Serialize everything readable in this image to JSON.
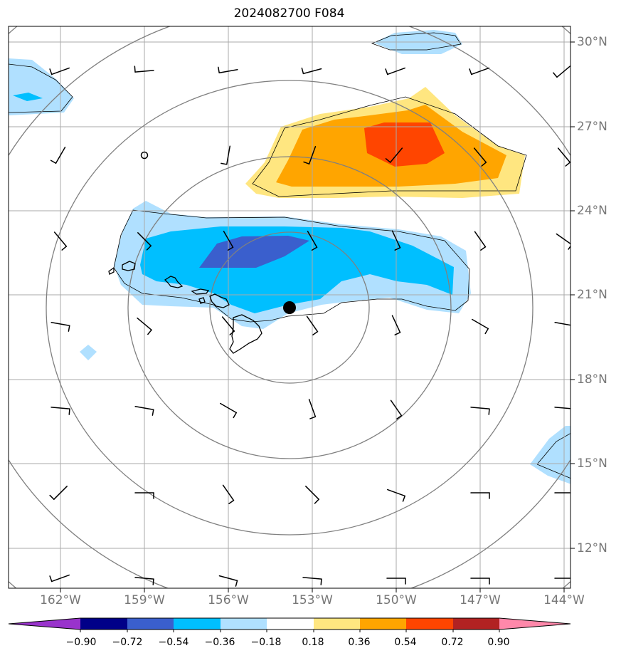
{
  "title": "2024082700 F084",
  "lat_labels": [
    "30°N",
    "27°N",
    "24°N",
    "21°N",
    "18°N",
    "15°N",
    "12°N"
  ],
  "lon_labels": [
    "162°W",
    "159°W",
    "156°W",
    "153°W",
    "150°W",
    "147°W",
    "144°W"
  ],
  "colorbar": {
    "ticks": [
      "−0.90",
      "−0.72",
      "−0.54",
      "−0.36",
      "−0.18",
      "0.18",
      "0.36",
      "0.54",
      "0.72",
      "0.90"
    ],
    "colors": [
      "#9933cc",
      "#000088",
      "#3a5fcd",
      "#00bfff",
      "#b0e0ff",
      "#ffffff",
      "#ffe680",
      "#ffa500",
      "#ff4500",
      "#b22222",
      "#ff88aa"
    ]
  },
  "storm_center": {
    "lat": 20.6,
    "lon": "153.8°W"
  },
  "colors": {
    "grid": "#aaaaaa",
    "rings": "#808080",
    "coast": "#000000",
    "label": "#777777"
  }
}
